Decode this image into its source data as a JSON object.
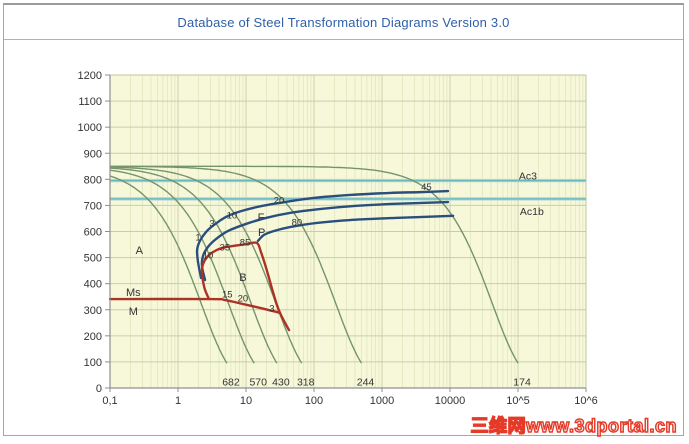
{
  "window": {
    "title": "Database of Steel Transformation Diagrams Version 3.0",
    "title_color": "#2f5fa8"
  },
  "watermark": {
    "text": "三维网www.3dportal.cn",
    "color": "#fdf1ee",
    "outline_color": "#e63a28"
  },
  "chart_data": {
    "type": "line",
    "description": "Continuous-cooling transformation (CCT) diagram: temperature (°C) vs time (s, log scale) with cooling curves, transformation-start curves, Ac lines and resulting hardness values",
    "x_axis": {
      "scale": "log",
      "min": 0.1,
      "max": 1000000,
      "tick_values": [
        0.1,
        1,
        10,
        100,
        1000,
        10000,
        100000,
        1000000
      ],
      "tick_labels": [
        "0,1",
        "1",
        "10",
        "100",
        "1000",
        "10000",
        "10^5",
        "10^6"
      ]
    },
    "y_axis": {
      "min": 0,
      "max": 1200,
      "tick_step": 100,
      "tick_labels": [
        "0",
        "100",
        "200",
        "300",
        "400",
        "500",
        "600",
        "700",
        "800",
        "900",
        "1000",
        "1100",
        "1200"
      ]
    },
    "grid": true,
    "colors": {
      "plot_bg": "#f6f8d9",
      "grid_minor_v": "#e6e9c4",
      "grid_major_v": "#ccd2ac",
      "grid_h": "#c9cdb0",
      "plot_border": "#c0c49f",
      "axis": "#8f8f8f",
      "cooling": "#76946b",
      "transformation_blue": "#2a4f7d",
      "transformation_red": "#ad3226",
      "ac_band": "#a5d6da",
      "ac_core": "#62b2b8",
      "label": "#333333"
    },
    "ac_lines": [
      {
        "label": "Ac3",
        "T": 795,
        "label_t": 140000,
        "label_T": 815
      },
      {
        "label": "Ac1b",
        "T": 725,
        "label_t": 160000,
        "label_T": 678
      }
    ],
    "cooling_curves": {
      "model": "newton: T(t) = T_ambient + (T_start - T_ambient) * exp(-k*t)",
      "T_start": 850,
      "T_ambient": 20,
      "T_cutoff": 95,
      "series": [
        {
          "k": 0.458,
          "hardness": "682"
        },
        {
          "k": 0.182,
          "hardness": "570"
        },
        {
          "k": 0.0843,
          "hardness": "430"
        },
        {
          "k": 0.0364,
          "hardness": "318"
        },
        {
          "k": 0.00481,
          "hardness": "244"
        },
        {
          "k": 2.4e-05,
          "hardness": "174"
        }
      ]
    },
    "transformation_curves": [
      {
        "name": "ferrite-start",
        "color": "blue",
        "points": [
          [
            2.18,
            422
          ],
          [
            1.97,
            483
          ],
          [
            1.91,
            529
          ],
          [
            2.1,
            564
          ],
          [
            2.58,
            598
          ],
          [
            3.38,
            625
          ],
          [
            5.08,
            656
          ],
          [
            8.7,
            679
          ],
          [
            17.2,
            698
          ],
          [
            37.5,
            713
          ],
          [
            103,
            729
          ],
          [
            339,
            740
          ],
          [
            1310,
            748
          ],
          [
            3630,
            751
          ],
          [
            9330,
            755
          ]
        ]
      },
      {
        "name": "ferrite-end",
        "color": "blue",
        "points": [
          [
            2.5,
            414
          ],
          [
            2.25,
            468
          ],
          [
            2.33,
            506
          ],
          [
            2.76,
            541
          ],
          [
            3.62,
            571
          ],
          [
            5.45,
            602
          ],
          [
            10,
            629
          ],
          [
            19.7,
            652
          ],
          [
            44.3,
            671
          ],
          [
            121,
            686
          ],
          [
            399,
            698
          ],
          [
            1547,
            706
          ],
          [
            9330,
            713
          ]
        ]
      },
      {
        "name": "pearlite-start",
        "color": "blue",
        "points": [
          [
            15,
            564
          ],
          [
            18.4,
            587
          ],
          [
            25.8,
            602
          ],
          [
            44.3,
            617
          ],
          [
            110,
            633
          ],
          [
            339,
            644
          ],
          [
            1547,
            652
          ],
          [
            11120,
            660
          ]
        ]
      },
      {
        "name": "bainite-boundary",
        "color": "red",
        "points": [
          [
            2.85,
            341
          ],
          [
            2.5,
            376
          ],
          [
            2.33,
            410
          ],
          [
            2.25,
            445
          ],
          [
            2.33,
            475
          ],
          [
            2.67,
            502
          ],
          [
            3.26,
            521
          ],
          [
            4.44,
            537
          ],
          [
            6.66,
            545
          ],
          [
            10.35,
            552
          ],
          [
            14.5,
            556
          ],
          [
            16.6,
            521
          ],
          [
            19,
            475
          ],
          [
            21.8,
            422
          ],
          [
            24.9,
            368
          ],
          [
            28.5,
            318
          ],
          [
            31.6,
            288
          ],
          [
            36.2,
            257
          ],
          [
            42.9,
            222
          ]
        ]
      },
      {
        "name": "martensite-start",
        "color": "red",
        "points": [
          [
            0.1,
            341
          ],
          [
            2.95,
            341
          ],
          [
            4.9,
            337
          ],
          [
            9,
            322
          ],
          [
            16.1,
            307
          ],
          [
            24.9,
            295
          ],
          [
            31.6,
            288
          ]
        ]
      }
    ],
    "phase_labels": [
      {
        "text": "A",
        "t": 0.27,
        "T": 530
      },
      {
        "text": "B",
        "t": 9,
        "T": 426
      },
      {
        "text": "F",
        "t": 16.6,
        "T": 656
      },
      {
        "text": "P",
        "t": 17,
        "T": 598
      },
      {
        "text": "Ms",
        "t": 0.22,
        "T": 368
      },
      {
        "text": "M",
        "t": 0.22,
        "T": 295
      }
    ],
    "percent_labels": [
      {
        "text": "1",
        "t": 1.97,
        "T": 579
      },
      {
        "text": "3",
        "t": 3.16,
        "T": 633
      },
      {
        "text": "10",
        "t": 6.2,
        "T": 663
      },
      {
        "text": "20",
        "t": 30.6,
        "T": 721
      },
      {
        "text": "45",
        "t": 4500,
        "T": 772
      },
      {
        "text": "80",
        "t": 56,
        "T": 637
      },
      {
        "text": "10",
        "t": 2.76,
        "T": 510
      },
      {
        "text": "35",
        "t": 4.9,
        "T": 541
      },
      {
        "text": "85",
        "t": 9.7,
        "T": 560
      },
      {
        "text": "15",
        "t": 5.3,
        "T": 360
      },
      {
        "text": "20",
        "t": 9,
        "T": 345
      },
      {
        "text": "3",
        "t": 24,
        "T": 307
      }
    ]
  }
}
